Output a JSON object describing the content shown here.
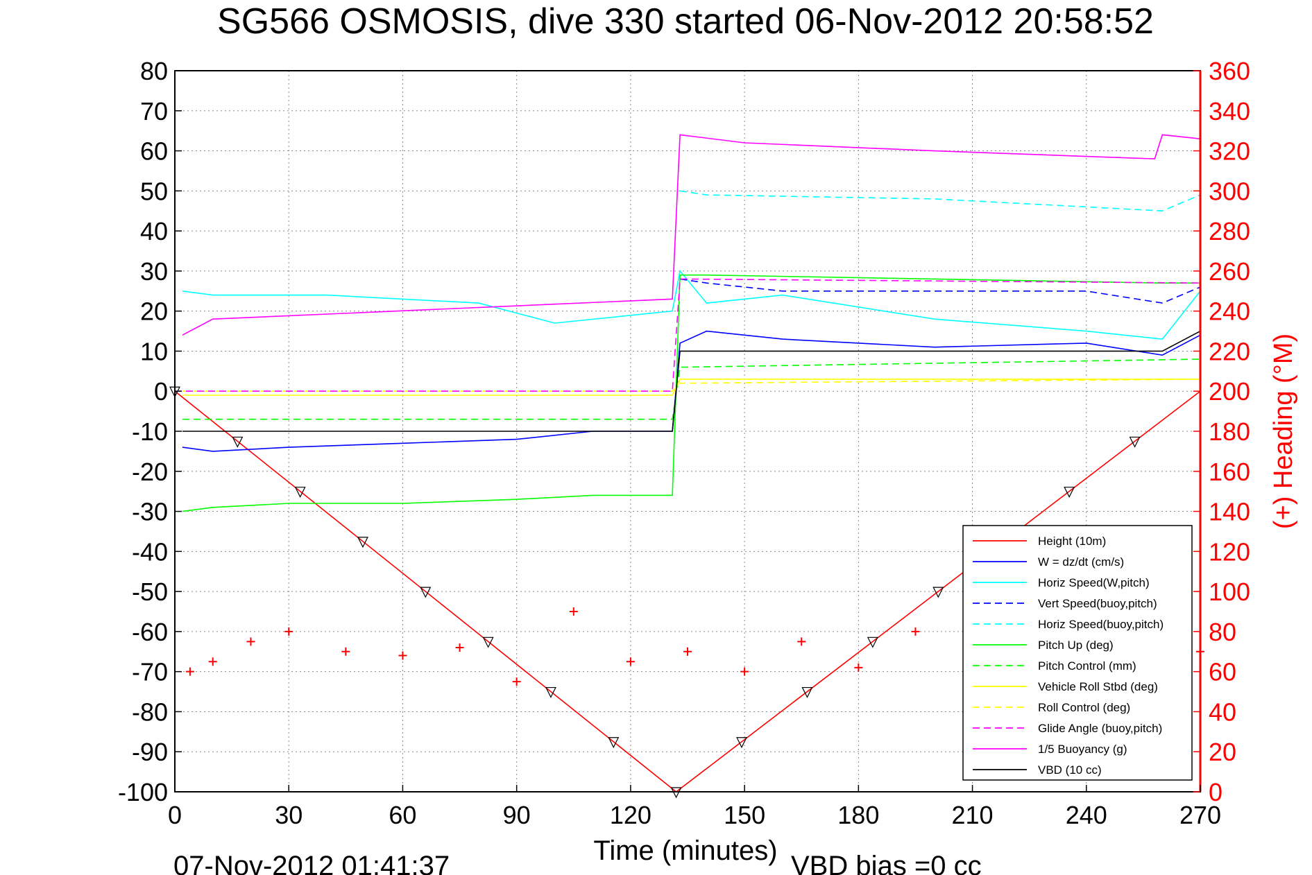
{
  "chart_data": {
    "type": "line",
    "title": "SG566 OSMOSIS, dive 330 started 06-Nov-2012 20:58:52",
    "xlabel": "Time (minutes)",
    "ylabel": "",
    "ylabel_right": "(+) Heading (°M)",
    "xlim": [
      0,
      270
    ],
    "ylim": [
      -100,
      80
    ],
    "ylim_right": [
      0,
      360
    ],
    "x_ticks": [
      "0",
      "30",
      "60",
      "90",
      "120",
      "150",
      "180",
      "210",
      "240",
      "270"
    ],
    "y_ticks": [
      "80",
      "70",
      "60",
      "50",
      "40",
      "30",
      "20",
      "10",
      "0",
      "-10",
      "-20",
      "-30",
      "-40",
      "-50",
      "-60",
      "-70",
      "-80",
      "-90",
      "-100"
    ],
    "y_ticks_right": [
      "360",
      "340",
      "320",
      "300",
      "280",
      "260",
      "240",
      "220",
      "200",
      "180",
      "160",
      "140",
      "120",
      "100",
      "80",
      "60",
      "40",
      "20",
      "0"
    ],
    "grid": true,
    "legend_position": "bottom-right",
    "footer_left": "07-Nov-2012 01:41:37",
    "footer_right": "VBD bias =0 cc",
    "colors": {
      "height": "#ff0000",
      "w": "#0000ff",
      "horiz": "#00ffff",
      "pitch": "#00ff00",
      "roll": "#ffff00",
      "glide": "#ff00ff",
      "buoy": "#ff00ff",
      "vbd": "#000000",
      "heading": "#ff0000",
      "right_axis": "#ff0000"
    },
    "series": [
      {
        "name": "Height (10m)",
        "x": [
          0,
          132,
          270
        ],
        "y": [
          0,
          -100,
          0
        ]
      },
      {
        "name": "W = dz/dt (cm/s)",
        "x": [
          2,
          10,
          30,
          60,
          90,
          110,
          131,
          133,
          140,
          160,
          200,
          240,
          260,
          270
        ],
        "y": [
          -14,
          -15,
          -14,
          -13,
          -12,
          -10,
          -10,
          12,
          15,
          13,
          11,
          12,
          9,
          14
        ]
      },
      {
        "name": "Horiz Speed(W,pitch)",
        "x": [
          2,
          10,
          40,
          80,
          100,
          131,
          133,
          140,
          160,
          200,
          240,
          260,
          270
        ],
        "y": [
          25,
          24,
          24,
          22,
          17,
          20,
          30,
          22,
          24,
          18,
          15,
          13,
          25
        ]
      },
      {
        "name": "Vert Speed(buoy,pitch)",
        "x": [
          133,
          140,
          160,
          200,
          240,
          260,
          270
        ],
        "y": [
          28,
          27,
          25,
          25,
          25,
          22,
          26
        ]
      },
      {
        "name": "Horiz Speed(buoy,pitch)",
        "x": [
          133,
          140,
          200,
          260,
          270
        ],
        "y": [
          50,
          49,
          48,
          45,
          49
        ]
      },
      {
        "name": "Pitch Up (deg)",
        "x": [
          2,
          10,
          30,
          60,
          90,
          110,
          131,
          133,
          140,
          200,
          260,
          270
        ],
        "y": [
          -30,
          -29,
          -28,
          -28,
          -27,
          -26,
          -26,
          29,
          29,
          28,
          27,
          27
        ]
      },
      {
        "name": "Pitch Control (mm)",
        "x": [
          2,
          131,
          133,
          270
        ],
        "y": [
          -7,
          -7,
          6,
          8
        ]
      },
      {
        "name": "Vehicle Roll Stbd (deg)",
        "x": [
          2,
          131,
          133,
          270
        ],
        "y": [
          -1,
          -1,
          3,
          3
        ]
      },
      {
        "name": "Roll Control (deg)",
        "x": [
          2,
          131,
          133,
          270
        ],
        "y": [
          0,
          0,
          2,
          3
        ]
      },
      {
        "name": "Glide Angle (buoy,pitch)",
        "x": [
          0,
          131,
          133,
          270
        ],
        "y": [
          0,
          0,
          28,
          27
        ]
      },
      {
        "name": "1/5 Buoyancy (g)",
        "x": [
          2,
          10,
          131,
          133,
          150,
          200,
          258,
          260,
          270
        ],
        "y": [
          14,
          18,
          23,
          64,
          62,
          60,
          58,
          64,
          63
        ]
      },
      {
        "name": "VBD (10 cc)",
        "x": [
          2,
          131,
          133,
          260,
          270
        ],
        "y": [
          -10,
          -10,
          10,
          10,
          15
        ]
      }
    ],
    "heading_right_axis": {
      "x": [
        4,
        10,
        20,
        30,
        45,
        60,
        75,
        90,
        105,
        120,
        135,
        150,
        165,
        180,
        195,
        210,
        225,
        240,
        255,
        270
      ],
      "y": [
        60,
        65,
        75,
        80,
        70,
        68,
        72,
        55,
        90,
        65,
        70,
        60,
        75,
        62,
        80,
        70,
        68,
        72,
        66,
        70
      ]
    }
  }
}
